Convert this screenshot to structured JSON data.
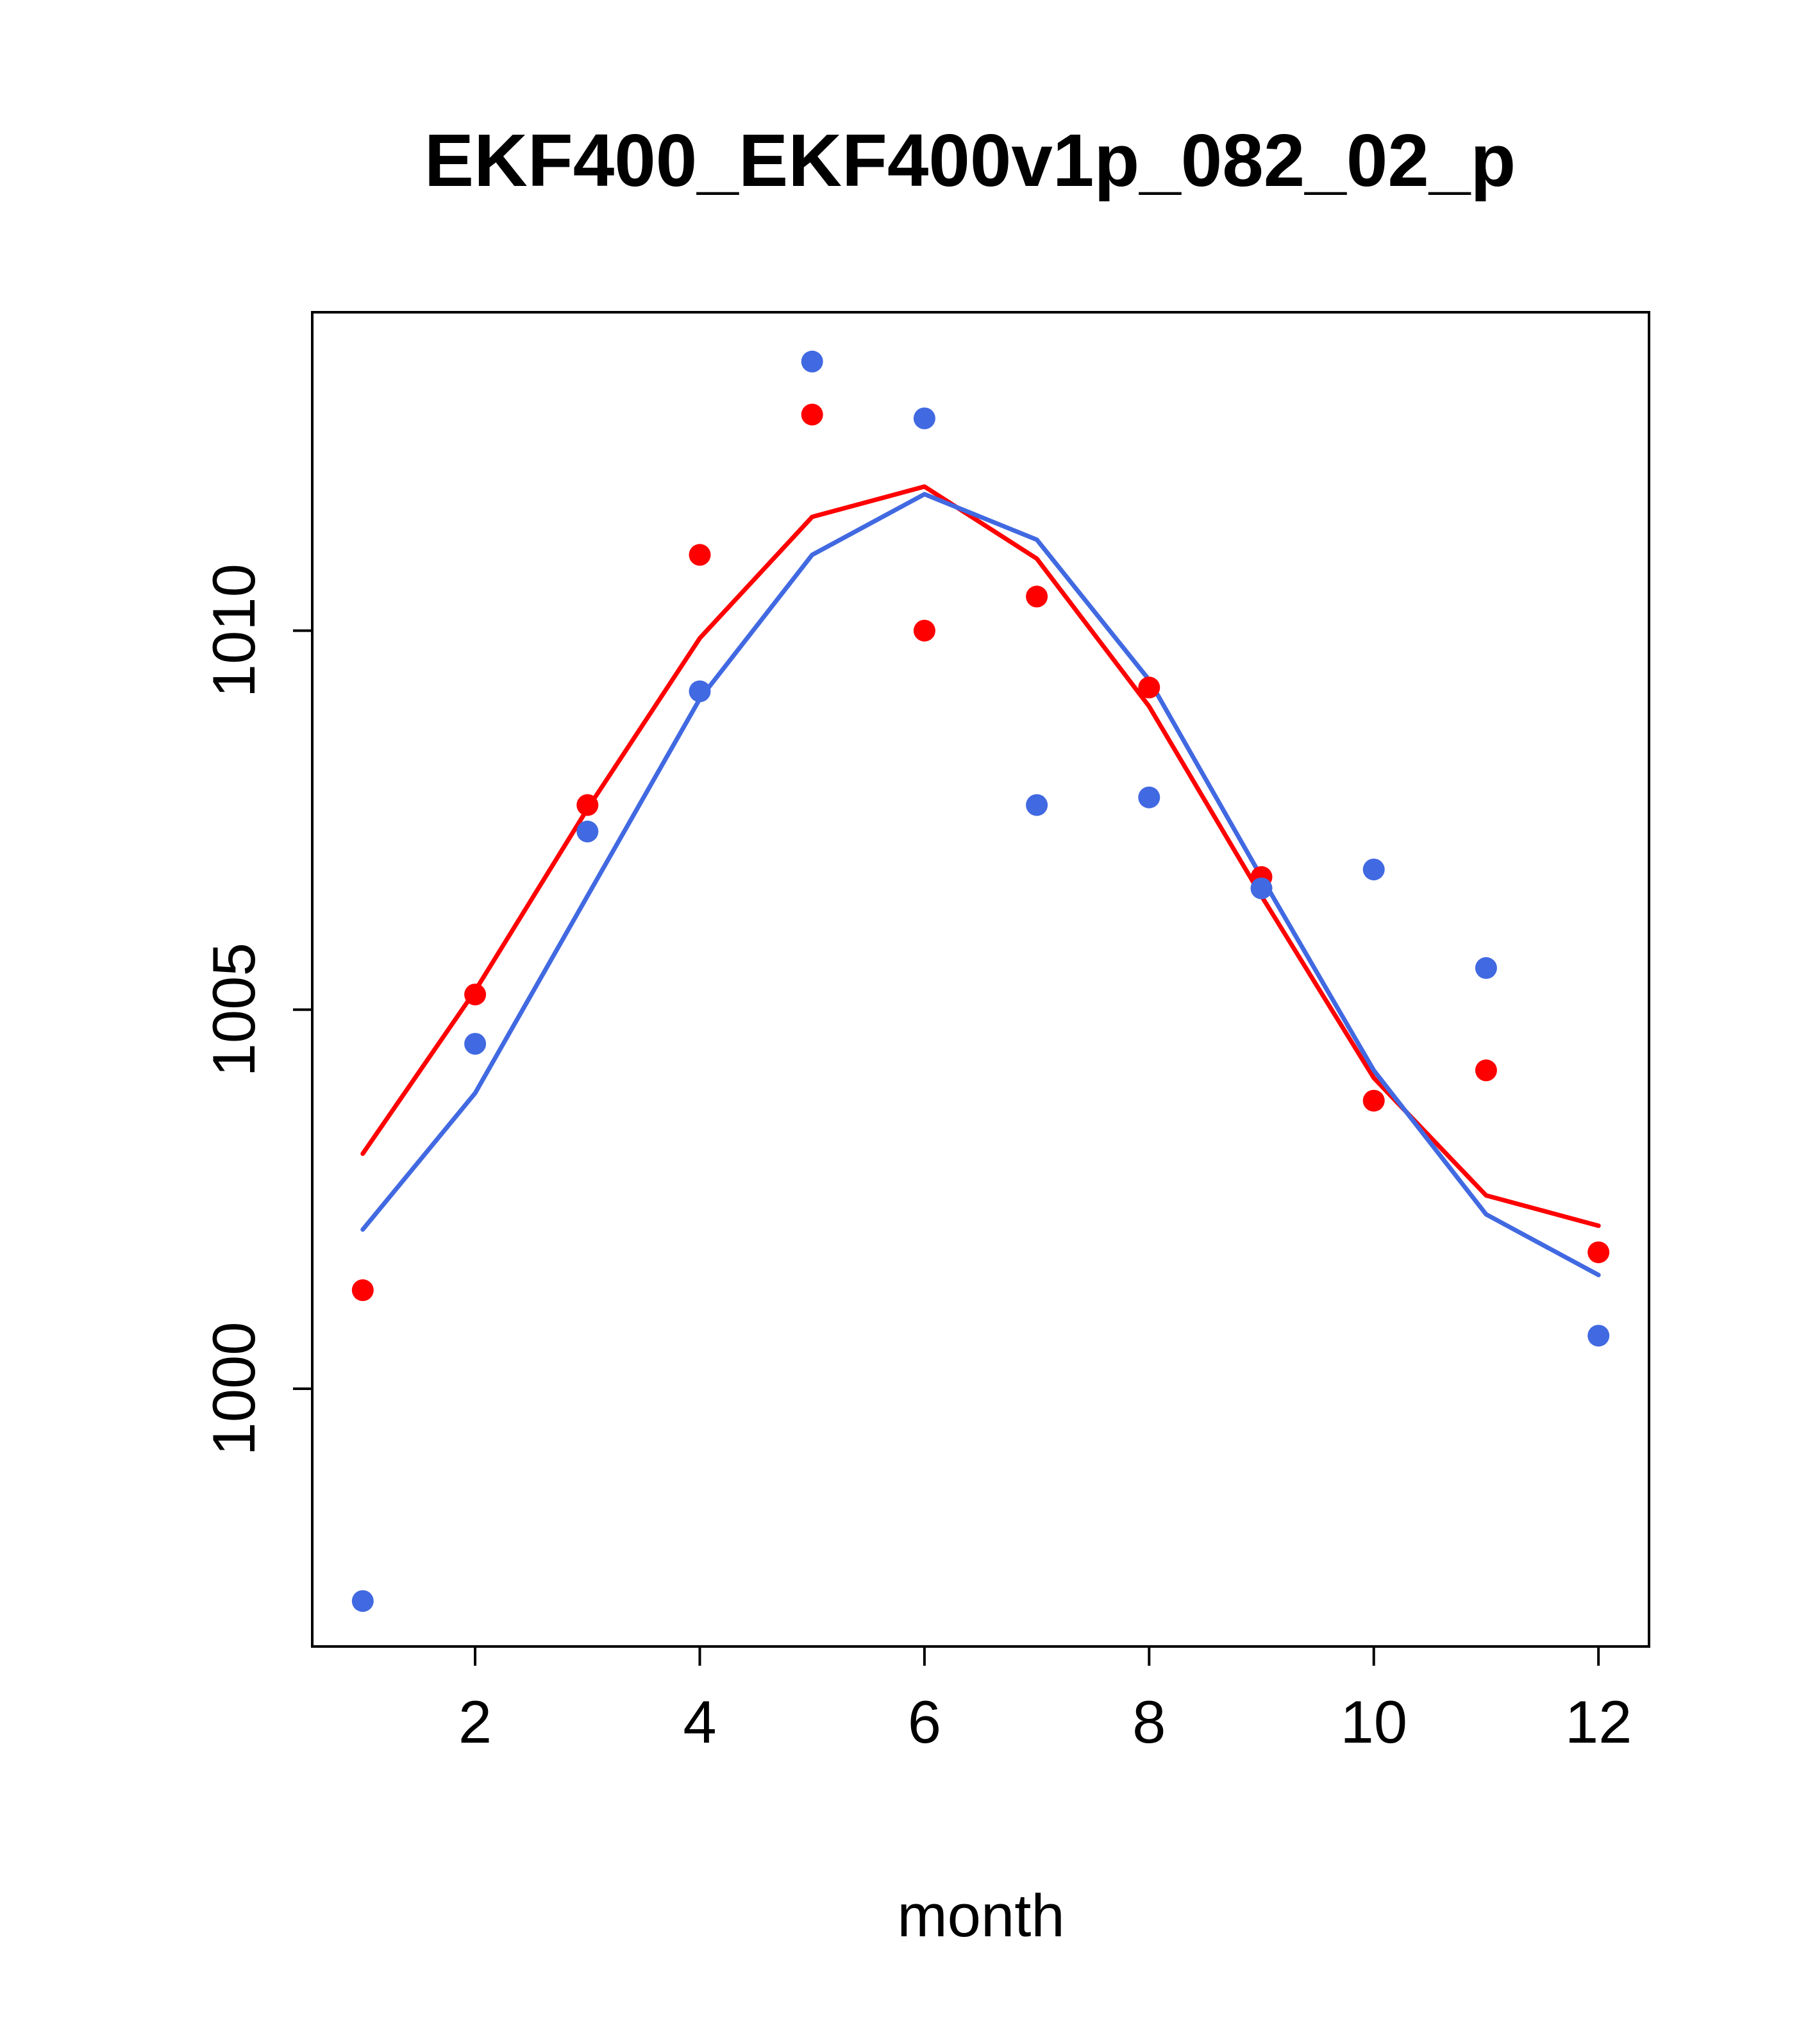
{
  "chart_data": {
    "type": "line",
    "title": "EKF400_EKF400v1p_082_02_p",
    "xlabel": "month",
    "ylabel": "",
    "xlim": [
      0.55,
      12.45
    ],
    "ylim": [
      996.6,
      1014.2
    ],
    "x_ticks": [
      2,
      4,
      6,
      8,
      10,
      12
    ],
    "x_tick_labels": [
      "2",
      "4",
      "6",
      "8",
      "10",
      "12"
    ],
    "y_ticks": [
      1000,
      1005,
      1010
    ],
    "y_tick_labels": [
      "1000",
      "1005",
      "1010"
    ],
    "grid": false,
    "x": [
      1,
      2,
      3,
      4,
      5,
      6,
      7,
      8,
      9,
      10,
      11,
      12
    ],
    "series": [
      {
        "name": "red points",
        "kind": "points",
        "color": "#ff0000",
        "values": [
          1001.3,
          1005.2,
          1007.7,
          1011.0,
          1012.85,
          1010.0,
          1010.45,
          1009.25,
          1006.75,
          1003.8,
          1004.2,
          1001.8
        ]
      },
      {
        "name": "blue points",
        "kind": "points",
        "color": "#4169e1",
        "values": [
          997.2,
          1004.55,
          1007.35,
          1009.2,
          1013.55,
          1012.8,
          1007.7,
          1007.8,
          1006.6,
          1006.85,
          1005.55,
          1000.7
        ]
      },
      {
        "name": "red line",
        "kind": "line",
        "color": "#ff0000",
        "values": [
          1003.1,
          1005.25,
          1007.65,
          1009.9,
          1011.5,
          1011.9,
          1010.95,
          1009.0,
          1006.5,
          1004.1,
          1002.55,
          1002.15
        ]
      },
      {
        "name": "blue line",
        "kind": "line",
        "color": "#4169e1",
        "values": [
          1002.1,
          1003.9,
          1006.5,
          1009.1,
          1011.0,
          1011.8,
          1011.2,
          1009.35,
          1006.75,
          1004.2,
          1002.3,
          1001.5
        ]
      }
    ]
  }
}
